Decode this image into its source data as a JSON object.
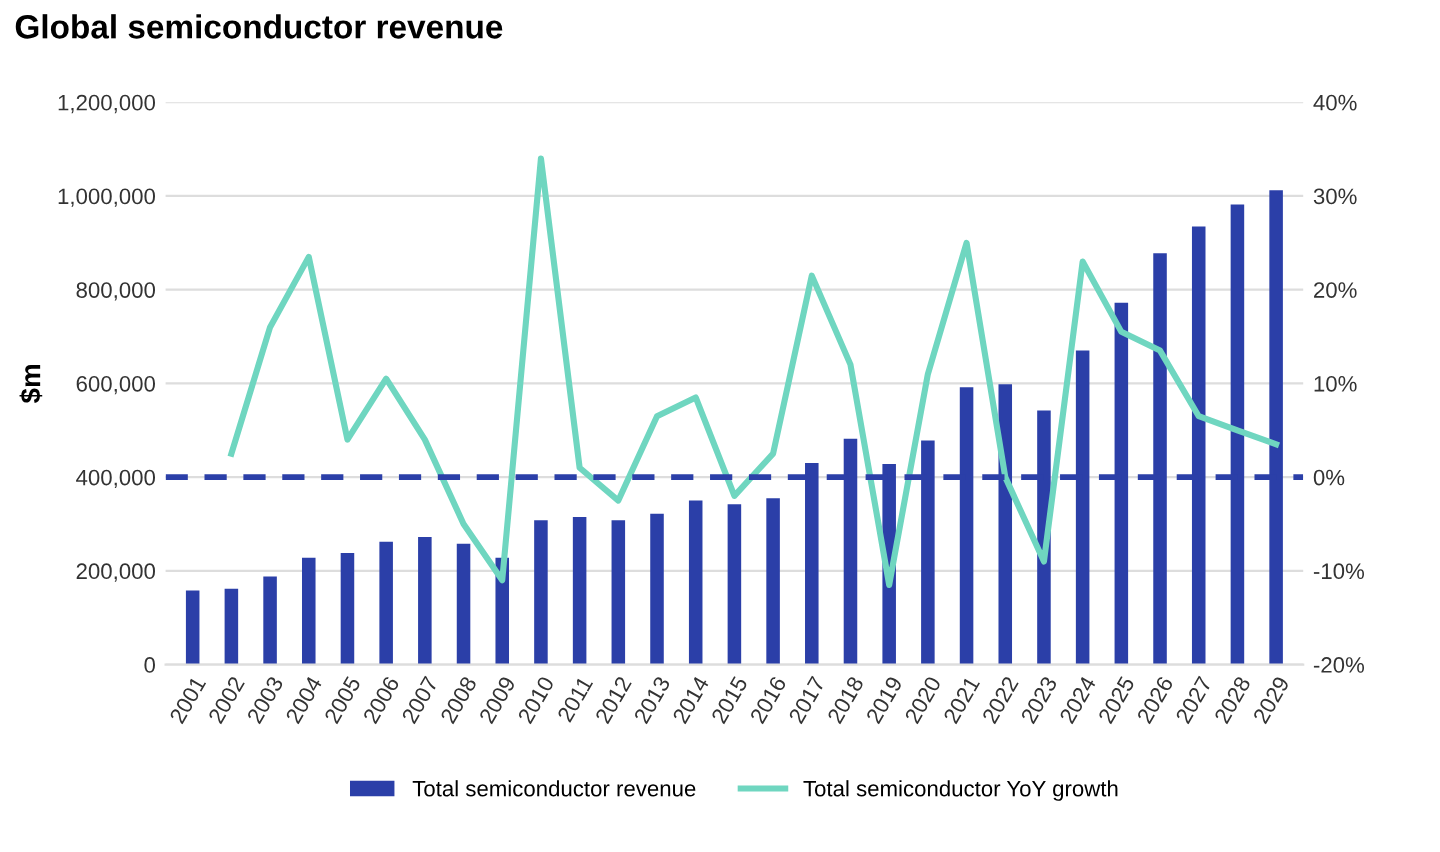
{
  "chart_data": {
    "type": "bar",
    "title": "Global semiconductor revenue",
    "ylabel": "$m",
    "categories": [
      "2001",
      "2002",
      "2003",
      "2004",
      "2005",
      "2006",
      "2007",
      "2008",
      "2009",
      "2010",
      "2011",
      "2012",
      "2013",
      "2014",
      "2015",
      "2016",
      "2017",
      "2018",
      "2019",
      "2020",
      "2021",
      "2022",
      "2023",
      "2024",
      "2025",
      "2026",
      "2027",
      "2028",
      "2029"
    ],
    "series": [
      {
        "name": "Total semiconductor revenue",
        "color": "#2b3fa8",
        "values": [
          158000,
          162000,
          188000,
          228000,
          238000,
          262000,
          272000,
          258000,
          228000,
          308000,
          315000,
          308000,
          322000,
          350000,
          342000,
          355000,
          430000,
          482000,
          428000,
          478000,
          592000,
          598000,
          542000,
          670000,
          772000,
          878000,
          935000,
          982000,
          1012000
        ]
      },
      {
        "name": "Total semiconductor YoY growth",
        "type": "line",
        "axis": "y2",
        "color": "#6fd6c0",
        "values": [
          null,
          2.5,
          16,
          23.5,
          4,
          10.5,
          4,
          -5,
          -11,
          34,
          1,
          -2.5,
          6.5,
          8.5,
          -2,
          2.5,
          21.5,
          12,
          -11.5,
          11,
          25,
          0,
          -9,
          23,
          15.5,
          13.5,
          6.5,
          5,
          3.5
        ]
      }
    ],
    "ylim": [
      0,
      1200000
    ],
    "yticks": [
      {
        "value": 0,
        "label": "0"
      },
      {
        "value": 200000,
        "label": "200,000"
      },
      {
        "value": 400000,
        "label": "400,000"
      },
      {
        "value": 600000,
        "label": "600,000"
      },
      {
        "value": 800000,
        "label": "800,000"
      },
      {
        "value": 1000000,
        "label": "1,000,000"
      },
      {
        "value": 1200000,
        "label": "1,200,000"
      }
    ],
    "y2lim": [
      -20,
      40
    ],
    "y2ticks": [
      {
        "value": -20,
        "label": "-20%"
      },
      {
        "value": -10,
        "label": "-10%"
      },
      {
        "value": 0,
        "label": "0%"
      },
      {
        "value": 10,
        "label": "10%"
      },
      {
        "value": 20,
        "label": "20%"
      },
      {
        "value": 30,
        "label": "30%"
      },
      {
        "value": 40,
        "label": "40%"
      }
    ],
    "ref_lines": [
      {
        "axis": "y2",
        "value": 0,
        "color": "#2b3fa8",
        "line_style": "dashed"
      }
    ],
    "grid": "y",
    "legend": "bottom"
  }
}
